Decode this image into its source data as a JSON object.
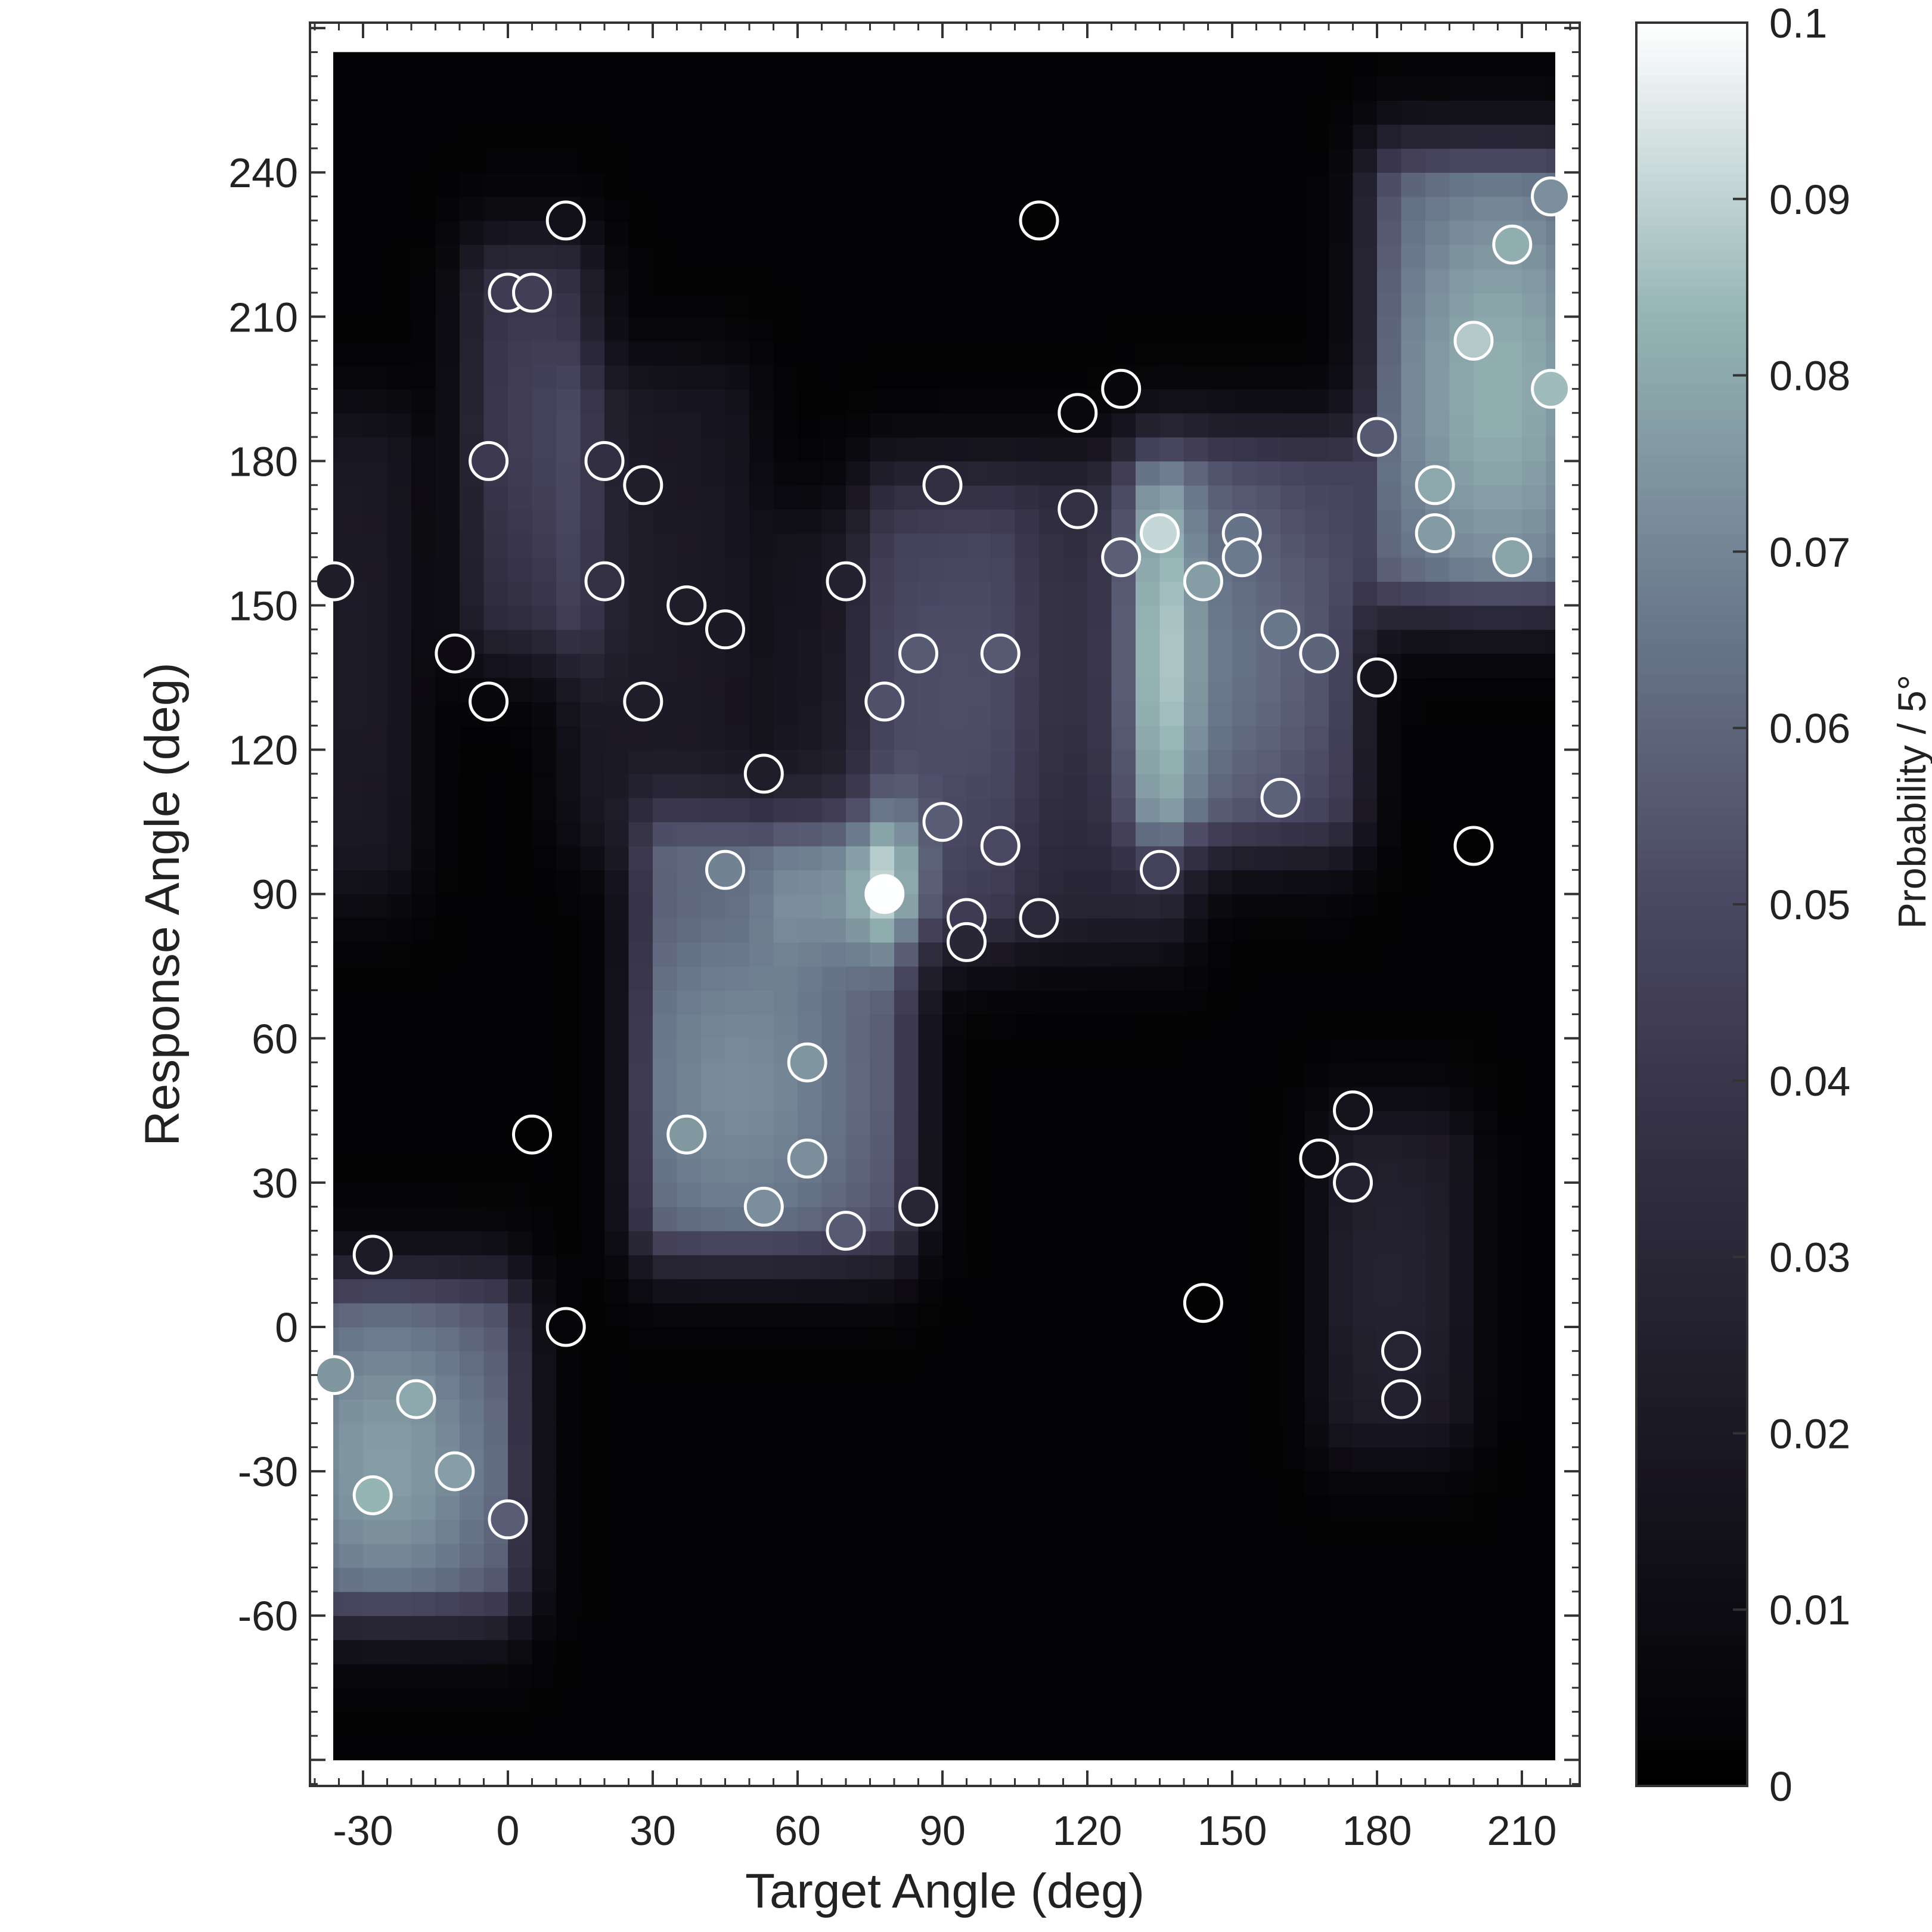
{
  "chart_data": {
    "type": "heatmap",
    "xlabel": "Target Angle (deg)",
    "ylabel": "Response Angle (deg)",
    "colorbar_label": "Probability / 5°",
    "xlim": [
      -40,
      220
    ],
    "ylim": [
      -90,
      265
    ],
    "x_ticks": [
      -30,
      0,
      30,
      60,
      90,
      120,
      150,
      180,
      210
    ],
    "y_ticks": [
      -60,
      -30,
      0,
      30,
      60,
      90,
      120,
      150,
      180,
      210,
      240
    ],
    "colorbar_ticks": [
      0,
      0.01,
      0.02,
      0.03,
      0.04,
      0.05,
      0.06,
      0.07,
      0.08,
      0.09,
      0.1
    ],
    "colorbar_range": [
      0,
      0.1
    ],
    "colormap": [
      "#000000",
      "#16141e",
      "#2e2b3d",
      "#4a4762",
      "#6b7a8d",
      "#95b4b4",
      "#ffffff"
    ],
    "bin_size_deg": 5,
    "density_blobs": [
      {
        "x": [
          -37,
          -3
        ],
        "y": [
          -50,
          0
        ],
        "cx": -25,
        "cy": -28,
        "peak": 0.075
      },
      {
        "x": [
          -3,
          12
        ],
        "y": [
          150,
          215
        ],
        "cx": 5,
        "cy": 190,
        "peak": 0.042
      },
      {
        "x": [
          33,
          78
        ],
        "y": [
          25,
          95
        ],
        "cx": 48,
        "cy": 50,
        "peak": 0.07
      },
      {
        "x": [
          80,
          135
        ],
        "y": [
          90,
          170
        ],
        "cx": 105,
        "cy": 140,
        "peak": 0.035
      },
      {
        "x": [
          135,
          170
        ],
        "y": [
          110,
          175
        ],
        "cx": 148,
        "cy": 140,
        "peak": 0.062
      },
      {
        "x": [
          185,
          218
        ],
        "y": [
          160,
          235
        ],
        "cx": 205,
        "cy": 195,
        "peak": 0.08
      },
      {
        "x": [
          175,
          193
        ],
        "y": [
          -15,
          35
        ],
        "cx": 182,
        "cy": 10,
        "peak": 0.025
      },
      {
        "x": [
          -37,
          -25
        ],
        "y": [
          100,
          180
        ],
        "cx": -32,
        "cy": 140,
        "peak": 0.02
      },
      {
        "x": [
          18,
          45
        ],
        "y": [
          110,
          190
        ],
        "cx": 28,
        "cy": 150,
        "peak": 0.02
      },
      {
        "x": [
          60,
          100
        ],
        "y": [
          90,
          160
        ],
        "cx": 80,
        "cy": 120,
        "peak": 0.018
      }
    ],
    "points": [
      {
        "x": -36,
        "y": 155
      },
      {
        "x": -36,
        "y": -10
      },
      {
        "x": -28,
        "y": 15
      },
      {
        "x": -28,
        "y": -35
      },
      {
        "x": -19,
        "y": -15
      },
      {
        "x": -11,
        "y": 140
      },
      {
        "x": -11,
        "y": -30
      },
      {
        "x": -4,
        "y": 180
      },
      {
        "x": -4,
        "y": 130
      },
      {
        "x": 0,
        "y": 215
      },
      {
        "x": 0,
        "y": -40
      },
      {
        "x": 5,
        "y": 215
      },
      {
        "x": 5,
        "y": 40
      },
      {
        "x": 12,
        "y": 230
      },
      {
        "x": 12,
        "y": 0
      },
      {
        "x": 20,
        "y": 180
      },
      {
        "x": 20,
        "y": 155
      },
      {
        "x": 28,
        "y": 175
      },
      {
        "x": 28,
        "y": 130
      },
      {
        "x": 37,
        "y": 150
      },
      {
        "x": 37,
        "y": 40
      },
      {
        "x": 45,
        "y": 145
      },
      {
        "x": 45,
        "y": 95
      },
      {
        "x": 53,
        "y": 115
      },
      {
        "x": 53,
        "y": 25
      },
      {
        "x": 62,
        "y": 55
      },
      {
        "x": 62,
        "y": 35
      },
      {
        "x": 70,
        "y": 155
      },
      {
        "x": 70,
        "y": 20
      },
      {
        "x": 78,
        "y": 130
      },
      {
        "x": 78,
        "y": 90
      },
      {
        "x": 85,
        "y": 140
      },
      {
        "x": 85,
        "y": 25
      },
      {
        "x": 90,
        "y": 175
      },
      {
        "x": 90,
        "y": 105
      },
      {
        "x": 95,
        "y": 85
      },
      {
        "x": 95,
        "y": 80
      },
      {
        "x": 102,
        "y": 140
      },
      {
        "x": 102,
        "y": 100
      },
      {
        "x": 110,
        "y": 230
      },
      {
        "x": 110,
        "y": 85
      },
      {
        "x": 118,
        "y": 190
      },
      {
        "x": 118,
        "y": 170
      },
      {
        "x": 127,
        "y": 195
      },
      {
        "x": 127,
        "y": 160
      },
      {
        "x": 135,
        "y": 165
      },
      {
        "x": 135,
        "y": 95
      },
      {
        "x": 144,
        "y": 155
      },
      {
        "x": 144,
        "y": 5
      },
      {
        "x": 152,
        "y": 165
      },
      {
        "x": 152,
        "y": 160
      },
      {
        "x": 160,
        "y": 145
      },
      {
        "x": 160,
        "y": 110
      },
      {
        "x": 168,
        "y": 140
      },
      {
        "x": 168,
        "y": 35
      },
      {
        "x": 175,
        "y": 45
      },
      {
        "x": 175,
        "y": 30
      },
      {
        "x": 180,
        "y": 185
      },
      {
        "x": 180,
        "y": 135
      },
      {
        "x": 185,
        "y": -5
      },
      {
        "x": 185,
        "y": -15
      },
      {
        "x": 192,
        "y": 175
      },
      {
        "x": 192,
        "y": 165
      },
      {
        "x": 200,
        "y": 205
      },
      {
        "x": 200,
        "y": 100
      },
      {
        "x": 208,
        "y": 225
      },
      {
        "x": 208,
        "y": 160
      },
      {
        "x": 216,
        "y": 235
      },
      {
        "x": 216,
        "y": 195
      }
    ]
  }
}
